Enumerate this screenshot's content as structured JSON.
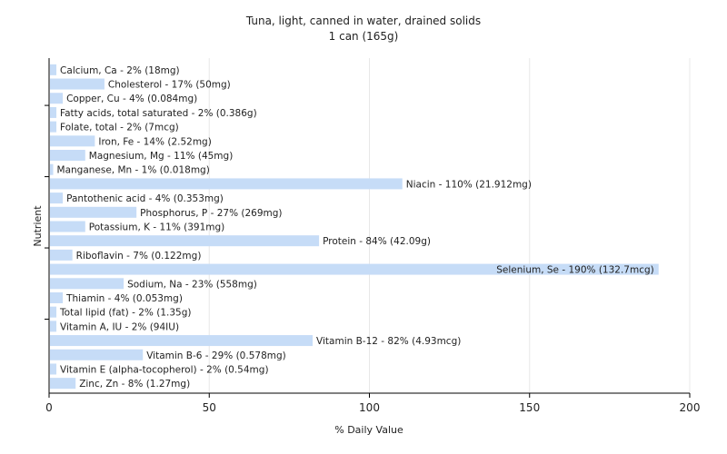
{
  "chart_data": {
    "type": "bar",
    "orientation": "horizontal",
    "title": "Tuna, light, canned in water, drained solids",
    "subtitle": "1 can (165g)",
    "xlabel": "% Daily Value",
    "ylabel": "Nutrient",
    "xlim": [
      0,
      200
    ],
    "xticks": [
      0,
      50,
      100,
      150,
      200
    ],
    "grid": "vertical",
    "bar_color": "#c6dcf7",
    "grid_color": "#e8e8e8",
    "bars": [
      {
        "name": "Calcium, Ca",
        "value": 2,
        "label": "Calcium, Ca - 2% (18mg)"
      },
      {
        "name": "Cholesterol",
        "value": 17,
        "label": "Cholesterol - 17% (50mg)"
      },
      {
        "name": "Copper, Cu",
        "value": 4,
        "label": "Copper, Cu - 4% (0.084mg)"
      },
      {
        "name": "Fatty acids, total saturated",
        "value": 2,
        "label": "Fatty acids, total saturated - 2% (0.386g)"
      },
      {
        "name": "Folate, total",
        "value": 2,
        "label": "Folate, total - 2% (7mcg)"
      },
      {
        "name": "Iron, Fe",
        "value": 14,
        "label": "Iron, Fe - 14% (2.52mg)"
      },
      {
        "name": "Magnesium, Mg",
        "value": 11,
        "label": "Magnesium, Mg - 11% (45mg)"
      },
      {
        "name": "Manganese, Mn",
        "value": 1,
        "label": "Manganese, Mn - 1% (0.018mg)"
      },
      {
        "name": "Niacin",
        "value": 110,
        "label": "Niacin - 110% (21.912mg)"
      },
      {
        "name": "Pantothenic acid",
        "value": 4,
        "label": "Pantothenic acid - 4% (0.353mg)"
      },
      {
        "name": "Phosphorus, P",
        "value": 27,
        "label": "Phosphorus, P - 27% (269mg)"
      },
      {
        "name": "Potassium, K",
        "value": 11,
        "label": "Potassium, K - 11% (391mg)"
      },
      {
        "name": "Protein",
        "value": 84,
        "label": "Protein - 84% (42.09g)"
      },
      {
        "name": "Riboflavin",
        "value": 7,
        "label": "Riboflavin - 7% (0.122mg)"
      },
      {
        "name": "Selenium, Se",
        "value": 190,
        "label": "Selenium, Se - 190% (132.7mcg)"
      },
      {
        "name": "Sodium, Na",
        "value": 23,
        "label": "Sodium, Na - 23% (558mg)"
      },
      {
        "name": "Thiamin",
        "value": 4,
        "label": "Thiamin - 4% (0.053mg)"
      },
      {
        "name": "Total lipid (fat)",
        "value": 2,
        "label": "Total lipid (fat) - 2% (1.35g)"
      },
      {
        "name": "Vitamin A, IU",
        "value": 2,
        "label": "Vitamin A, IU - 2% (94IU)"
      },
      {
        "name": "Vitamin B-12",
        "value": 82,
        "label": "Vitamin B-12 - 82% (4.93mcg)"
      },
      {
        "name": "Vitamin B-6",
        "value": 29,
        "label": "Vitamin B-6 - 29% (0.578mg)"
      },
      {
        "name": "Vitamin E (alpha-tocopherol)",
        "value": 2,
        "label": "Vitamin E (alpha-tocopherol) - 2% (0.54mg)"
      },
      {
        "name": "Zinc, Zn",
        "value": 8,
        "label": "Zinc, Zn - 8% (1.27mg)"
      }
    ]
  }
}
